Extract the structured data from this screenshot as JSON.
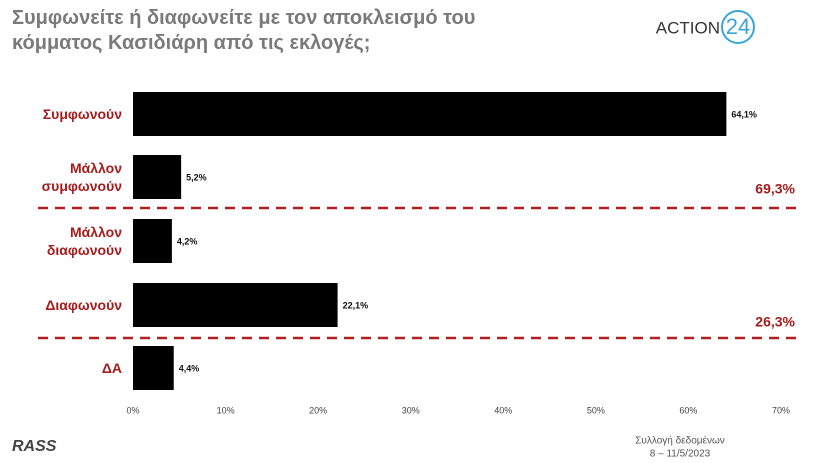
{
  "chart_data": {
    "type": "hbar",
    "title": "Συμφωνείτε ή διαφωνείτε με τον αποκλεισμό του κόμματος Κασιδιάρη από τις εκλογές;",
    "categories": [
      "Συμφωνούν",
      "Μάλλον συμφωνούν",
      "Μάλλον διαφωνούν",
      "Διαφωνούν",
      "ΔΑ"
    ],
    "values": [
      64.1,
      5.2,
      4.2,
      22.1,
      4.4
    ],
    "value_labels": [
      "64,1%",
      "5,2%",
      "4,2%",
      "22,1%",
      "4,4%"
    ],
    "color": "#000000",
    "xlim": [
      0,
      70
    ],
    "xticks": [
      {
        "value": 0,
        "label": "0%"
      },
      {
        "value": 10,
        "label": "10%"
      },
      {
        "value": 20,
        "label": "20%"
      },
      {
        "value": 30,
        "label": "30%"
      },
      {
        "value": 40,
        "label": "40%"
      },
      {
        "value": 50,
        "label": "50%"
      },
      {
        "value": 60,
        "label": "60%"
      },
      {
        "value": 70,
        "label": "70%"
      }
    ],
    "group_totals": [
      69.3,
      26.3
    ],
    "group_total_labels": [
      "69,3%",
      "26,3%"
    ],
    "source": "Συλλογή δεδομένων",
    "period": "8 – 11/5/2023",
    "logo_brand": "ACTION",
    "logo_number": "24",
    "logo_pollster": "RASS"
  }
}
